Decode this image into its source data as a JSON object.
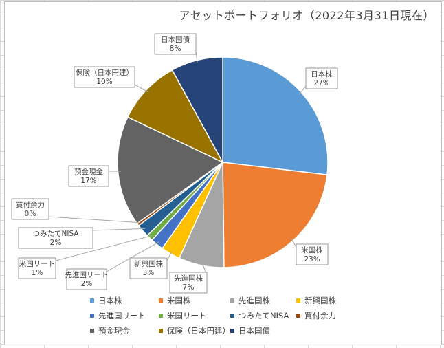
{
  "chart_data": {
    "type": "pie",
    "title": "アセットポートフォリオ（2022年3月31日現在）",
    "legend_position": "bottom",
    "start_angle_deg": 0,
    "direction": "clockwise",
    "slices": [
      {
        "label": "日本株",
        "value": 27,
        "value_label": "27%",
        "color": "#5b9bd5"
      },
      {
        "label": "米国株",
        "value": 23,
        "value_label": "23%",
        "color": "#ed7d31"
      },
      {
        "label": "先進国株",
        "value": 7,
        "value_label": "7%",
        "color": "#a5a5a5"
      },
      {
        "label": "新興国株",
        "value": 3,
        "value_label": "3%",
        "color": "#ffc000"
      },
      {
        "label": "先進国リート",
        "value": 2,
        "value_label": "2%",
        "color": "#4472c4"
      },
      {
        "label": "米国リート",
        "value": 1,
        "value_label": "1%",
        "color": "#70ad47"
      },
      {
        "label": "つみたてNISA",
        "value": 2,
        "value_label": "2%",
        "color": "#255e91"
      },
      {
        "label": "買付余力",
        "value": 0.4,
        "value_label": "0%",
        "color": "#9e480e"
      },
      {
        "label": "預金現金",
        "value": 17,
        "value_label": "17%",
        "color": "#636363"
      },
      {
        "label": "保険（日本円建）",
        "value": 10,
        "value_label": "10%",
        "color": "#997300"
      },
      {
        "label": "日本国債",
        "value": 8,
        "value_label": "8%",
        "color": "#264478"
      }
    ]
  }
}
